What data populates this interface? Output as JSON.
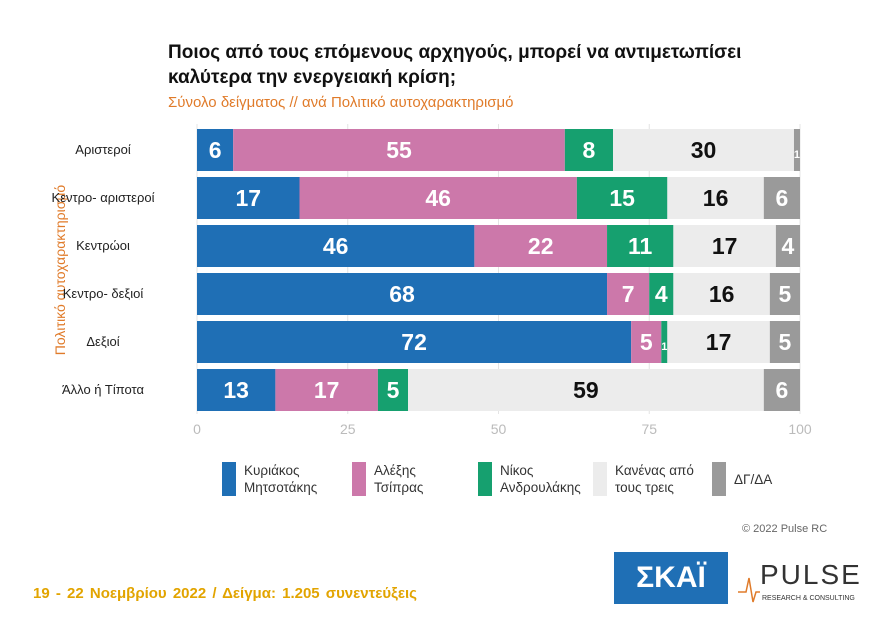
{
  "chart_data": {
    "type": "stacked-barh",
    "title": "Ποιος από τους επόμενους αρχηγούς, μπορεί να αντιμετωπίσει\nκαλύτερα την ενεργειακή κρίση;",
    "subtitle": "Σύνολο δείγματος // ανά Πολιτικό αυτοχαρακτηρισμό",
    "y_label": "Πολιτικό αυτοχαρακτηρισμό",
    "categories": [
      "Αριστεροί",
      "Κεντρο-\nαριστεροί",
      "Κεντρώοι",
      "Κεντρο-\nδεξιοί",
      "Δεξιοί",
      "Άλλο ή\nΤίποτα"
    ],
    "series": [
      {
        "name": "Κυριάκος\nΜητσοτάκης",
        "color": "#1f6fb5",
        "label_color": "#ffffff",
        "values": [
          6,
          17,
          46,
          68,
          72,
          13
        ]
      },
      {
        "name": "Αλέξης\nΤσίπρας",
        "color": "#cc78aa",
        "label_color": "#ffffff",
        "values": [
          55,
          46,
          22,
          7,
          5,
          17
        ]
      },
      {
        "name": "Νίκος\nΑνδρουλάκης",
        "color": "#16a06f",
        "label_color": "#ffffff",
        "values": [
          8,
          15,
          11,
          4,
          1,
          5
        ]
      },
      {
        "name": "Κανένας από\nτους τρεις",
        "color": "#ececec",
        "label_color": "#111111",
        "values": [
          30,
          16,
          17,
          16,
          17,
          59
        ]
      },
      {
        "name": "ΔΓ/ΔΑ",
        "color": "#9a9a9a",
        "label_color": "#ffffff",
        "values": [
          1,
          6,
          4,
          5,
          5,
          6
        ]
      }
    ],
    "xlim": [
      0,
      100
    ],
    "xticks": [
      0,
      25,
      50,
      75,
      100
    ],
    "grid": true,
    "footer": "19 - 22 Νοεμβρίου 2022 / Δείγμα: 1.205 συνεντεύξεις",
    "copyright": "© 2022 Pulse RC",
    "logos": [
      "ΣΚΑΪ",
      "PULSE",
      "RESEARCH & CONSULTING"
    ]
  }
}
